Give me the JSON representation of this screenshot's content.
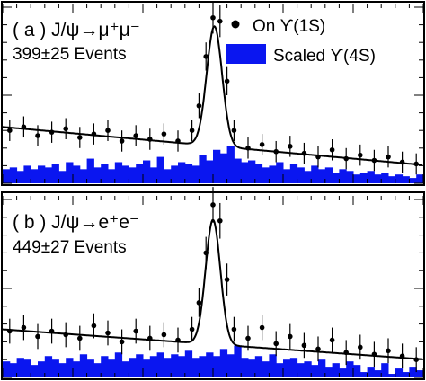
{
  "colors": {
    "histogram_fill": "#0a16f0",
    "data_points": "#000000",
    "fit_line": "#000000",
    "frame": "#000000"
  },
  "legend": {
    "data_label": "On ϒ(1S)",
    "hist_label": "Scaled ϒ(4S)"
  },
  "chart_data": [
    {
      "type": "area",
      "panel_label": "( a ) J/ψ→μ⁺μ⁻",
      "events_label": "399±25 Events",
      "xlabel": "",
      "ylabel": "",
      "x_range": [
        0,
        60
      ],
      "y_range": [
        0,
        100
      ],
      "grid": false,
      "legend_position": "top-right",
      "series": [
        {
          "name": "On ϒ(1S)",
          "type": "scatter",
          "points": [
            [
              1,
              30
            ],
            [
              3,
              32
            ],
            [
              5,
              27
            ],
            [
              7,
              29
            ],
            [
              9,
              31
            ],
            [
              11,
              26
            ],
            [
              13,
              28
            ],
            [
              15,
              30
            ],
            [
              17,
              24
            ],
            [
              19,
              27
            ],
            [
              21,
              25
            ],
            [
              23,
              28
            ],
            [
              25,
              24
            ],
            [
              27,
              30
            ],
            [
              28,
              44
            ],
            [
              29,
              72
            ],
            [
              30,
              94
            ],
            [
              31,
              92
            ],
            [
              32,
              58
            ],
            [
              33,
              30
            ],
            [
              35,
              20
            ],
            [
              37,
              22
            ],
            [
              39,
              18
            ],
            [
              41,
              21
            ],
            [
              43,
              17
            ],
            [
              45,
              15
            ],
            [
              47,
              19
            ],
            [
              49,
              14
            ],
            [
              51,
              16
            ],
            [
              53,
              13
            ],
            [
              55,
              15
            ],
            [
              57,
              12
            ],
            [
              59,
              11
            ]
          ],
          "errors": [
            6,
            6,
            6,
            6,
            6,
            6,
            6,
            6,
            6,
            6,
            6,
            6,
            6,
            6,
            7,
            8,
            9,
            9,
            8,
            6,
            6,
            6,
            6,
            6,
            6,
            6,
            6,
            6,
            6,
            6,
            6,
            6,
            6
          ]
        },
        {
          "name": "Scaled ϒ(4S)",
          "type": "bar",
          "values": [
            8,
            9,
            7,
            10,
            8,
            10,
            9,
            11,
            7,
            12,
            10,
            8,
            14,
            9,
            11,
            8,
            12,
            10,
            9,
            11,
            13,
            9,
            15,
            8,
            10,
            12,
            11,
            10,
            16,
            13,
            19,
            17,
            21,
            14,
            12,
            13,
            11,
            9,
            10,
            12,
            8,
            11,
            9,
            7,
            10,
            8,
            9,
            6,
            8,
            7,
            5,
            6,
            7,
            5,
            6,
            4,
            5,
            4,
            3,
            5
          ]
        },
        {
          "name": "fit",
          "type": "line",
          "curve": "linear background + Gaussian peak"
        }
      ]
    },
    {
      "type": "area",
      "panel_label": "( b ) J/ψ→e⁺e⁻",
      "events_label": "449±27 Events",
      "xlabel": "",
      "ylabel": "",
      "x_range": [
        0,
        60
      ],
      "y_range": [
        0,
        100
      ],
      "grid": false,
      "series": [
        {
          "name": "On ϒ(1S)",
          "type": "scatter",
          "points": [
            [
              1,
              26
            ],
            [
              3,
              28
            ],
            [
              5,
              23
            ],
            [
              7,
              26
            ],
            [
              9,
              24
            ],
            [
              11,
              22
            ],
            [
              13,
              29
            ],
            [
              15,
              25
            ],
            [
              17,
              20
            ],
            [
              19,
              26
            ],
            [
              21,
              22
            ],
            [
              23,
              24
            ],
            [
              25,
              21
            ],
            [
              27,
              27
            ],
            [
              28,
              42
            ],
            [
              29,
              70
            ],
            [
              30,
              97
            ],
            [
              31,
              88
            ],
            [
              32,
              55
            ],
            [
              33,
              27
            ],
            [
              35,
              22
            ],
            [
              37,
              28
            ],
            [
              39,
              19
            ],
            [
              41,
              23
            ],
            [
              43,
              18
            ],
            [
              45,
              16
            ],
            [
              47,
              21
            ],
            [
              49,
              14
            ],
            [
              51,
              17
            ],
            [
              53,
              13
            ],
            [
              55,
              15
            ],
            [
              57,
              12
            ],
            [
              59,
              10
            ]
          ],
          "errors": [
            7,
            7,
            7,
            7,
            7,
            7,
            7,
            7,
            7,
            7,
            7,
            7,
            7,
            7,
            8,
            9,
            10,
            10,
            9,
            7,
            7,
            7,
            7,
            7,
            7,
            7,
            7,
            7,
            7,
            7,
            7,
            7,
            7
          ]
        },
        {
          "name": "Scaled ϒ(4S)",
          "type": "bar",
          "values": [
            9,
            8,
            11,
            10,
            7,
            9,
            12,
            10,
            8,
            11,
            9,
            13,
            10,
            8,
            12,
            10,
            14,
            9,
            11,
            13,
            10,
            12,
            14,
            11,
            13,
            12,
            15,
            11,
            12,
            14,
            12,
            16,
            13,
            18,
            11,
            10,
            12,
            9,
            13,
            8,
            10,
            11,
            8,
            9,
            7,
            10,
            6,
            8,
            5,
            9,
            7,
            3,
            6,
            4,
            8,
            2,
            5,
            3,
            6,
            4
          ]
        },
        {
          "name": "fit",
          "type": "line",
          "curve": "linear background + Gaussian peak"
        }
      ]
    }
  ]
}
